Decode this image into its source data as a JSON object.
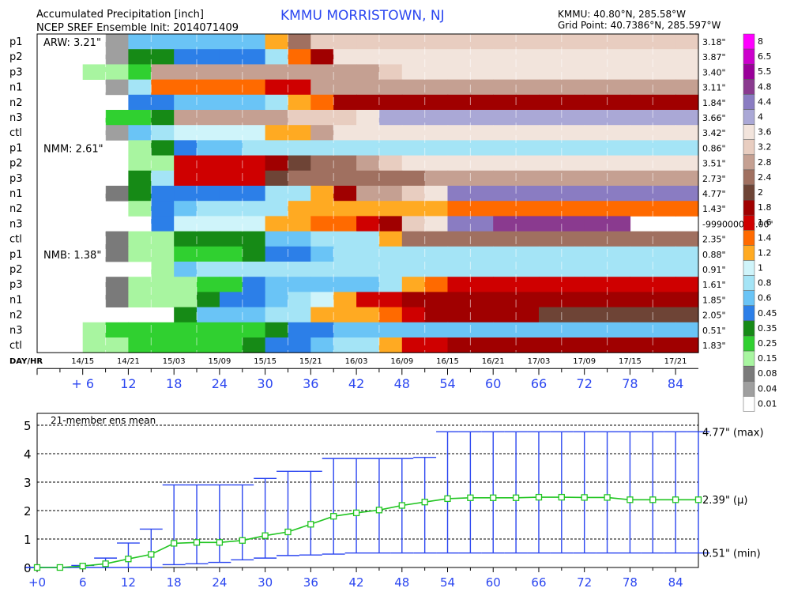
{
  "header": {
    "title_left_1": "Accumulated Precipitation [inch]",
    "title_left_2": "NCEP SREF Ensemble Init: 2014071409",
    "station_title": "KMMU  MORRISTOWN, NJ",
    "coords_1": "KMMU: 40.80°N, 285.58°W",
    "coords_2": "Grid Point: 40.7386°N, 285.597°W"
  },
  "colors": {
    "blue": "#2b46f0",
    "green": "#22c522",
    "text": "#000000"
  },
  "chart_data": [
    {
      "type": "heatmap",
      "title": "Accumulated Precipitation [inch]",
      "x_day_hr_label": "DAY/HR",
      "x_day_hr_ticks": [
        "14/15",
        "14/21",
        "15/03",
        "15/09",
        "15/15",
        "15/21",
        "16/03",
        "16/09",
        "16/15",
        "16/21",
        "17/03",
        "17/09",
        "17/15",
        "17/21"
      ],
      "x_fhr_ticks": [
        "+ 6",
        "12",
        "18",
        "24",
        "30",
        "36",
        "42",
        "48",
        "54",
        "60",
        "66",
        "72",
        "78",
        "84"
      ],
      "groups": [
        {
          "name": "ARW",
          "label": "ARW: 3.21\""
        },
        {
          "name": "NMM",
          "label": "NMM: 2.61\""
        },
        {
          "name": "NMB",
          "label": "NMB: 1.38\""
        }
      ],
      "members": [
        {
          "label": "p1",
          "total": "3.18\"",
          "group": "ARW",
          "cells": [
            null,
            null,
            null,
            "0.04",
            "0.6",
            "0.6",
            "0.6",
            "0.6",
            "0.6",
            "0.6",
            "1.2",
            "2.4",
            "3.2",
            "3.2",
            "3.2",
            "3.2",
            "3.2",
            "3.2",
            "3.2",
            "3.2",
            "3.2",
            "3.2",
            "3.2",
            "3.2",
            "3.2",
            "3.2",
            "3.2",
            "3.2",
            "3.2"
          ]
        },
        {
          "label": "p2",
          "total": "3.87\"",
          "group": "ARW",
          "cells": [
            null,
            null,
            null,
            "0.04",
            "0.35",
            "0.35",
            "0.45",
            "0.45",
            "0.45",
            "0.45",
            "0.8",
            "1.4",
            "1.8",
            "3.6",
            "3.6",
            "3.6",
            "3.6",
            "3.6",
            "3.6",
            "3.6",
            "3.6",
            "3.6",
            "3.6",
            "3.6",
            "3.6",
            "3.6",
            "3.6",
            "3.6",
            "3.6"
          ]
        },
        {
          "label": "p3",
          "total": "3.40\"",
          "group": "ARW",
          "cells": [
            null,
            null,
            "0.15",
            "0.15",
            "0.25",
            "2.8",
            "2.8",
            "2.8",
            "2.8",
            "2.8",
            "2.8",
            "2.8",
            "2.8",
            "2.8",
            "2.8",
            "3.2",
            "3.6",
            "3.6",
            "3.6",
            "3.6",
            "3.6",
            "3.6",
            "3.6",
            "3.6",
            "3.6",
            "3.6",
            "3.6",
            "3.6",
            "3.6"
          ]
        },
        {
          "label": "n1",
          "total": "3.11\"",
          "group": "ARW",
          "cells": [
            null,
            null,
            null,
            "0.04",
            "0.8",
            "1.4",
            "1.4",
            "1.4",
            "1.4",
            "1.4",
            "1.6",
            "1.6",
            "2.8",
            "2.8",
            "2.8",
            "2.8",
            "2.8",
            "2.8",
            "2.8",
            "2.8",
            "2.8",
            "2.8",
            "2.8",
            "2.8",
            "2.8",
            "2.8",
            "2.8",
            "2.8",
            "2.8"
          ]
        },
        {
          "label": "n2",
          "total": "1.84\"",
          "group": "ARW",
          "cells": [
            null,
            null,
            null,
            null,
            "0.45",
            "0.45",
            "0.6",
            "0.6",
            "0.6",
            "0.6",
            "0.8",
            "1.2",
            "1.4",
            "1.8",
            "1.8",
            "1.8",
            "1.8",
            "1.8",
            "1.8",
            "1.8",
            "1.8",
            "1.8",
            "1.8",
            "1.8",
            "1.8",
            "1.8",
            "1.8",
            "1.8",
            "1.8"
          ]
        },
        {
          "label": "n3",
          "total": "3.66\"",
          "group": "ARW",
          "cells": [
            null,
            null,
            null,
            "0.25",
            "0.25",
            "0.35",
            "2.8",
            "2.8",
            "2.8",
            "2.8",
            "2.8",
            "3.2",
            "3.2",
            "3.2",
            "3.6",
            "4",
            "4",
            "4",
            "4",
            "4",
            "4",
            "4",
            "4",
            "4",
            "4",
            "4",
            "4",
            "4",
            "4"
          ]
        },
        {
          "label": "ctl",
          "total": "3.42\"",
          "group": "ARW",
          "cells": [
            null,
            null,
            null,
            "0.04",
            "0.6",
            "0.8",
            "1",
            "1",
            "1",
            "1",
            "1.2",
            "1.2",
            "2.8",
            "3.6",
            "3.6",
            "3.6",
            "3.6",
            "3.6",
            "3.6",
            "3.6",
            "3.6",
            "3.6",
            "3.6",
            "3.6",
            "3.6",
            "3.6",
            "3.6",
            "3.6",
            "3.6"
          ]
        },
        {
          "label": "p1",
          "total": "0.86\"",
          "group": "NMM",
          "cells": [
            null,
            null,
            null,
            null,
            "0.15",
            "0.35",
            "0.45",
            "0.6",
            "0.6",
            "0.8",
            "0.8",
            "0.8",
            "0.8",
            "0.8",
            "0.8",
            "0.8",
            "0.8",
            "0.8",
            "0.8",
            "0.8",
            "0.8",
            "0.8",
            "0.8",
            "0.8",
            "0.8",
            "0.8",
            "0.8",
            "0.8",
            "0.8"
          ]
        },
        {
          "label": "p2",
          "total": "3.51\"",
          "group": "NMM",
          "cells": [
            null,
            null,
            null,
            null,
            "0.15",
            "0.15",
            "1.6",
            "1.6",
            "1.6",
            "1.6",
            "1.8",
            "2",
            "2.4",
            "2.4",
            "2.8",
            "3.2",
            "3.6",
            "3.6",
            "3.6",
            "3.6",
            "3.6",
            "3.6",
            "3.6",
            "3.6",
            "3.6",
            "3.6",
            "3.6",
            "3.6",
            "3.6"
          ]
        },
        {
          "label": "p3",
          "total": "2.73\"",
          "group": "NMM",
          "cells": [
            null,
            null,
            null,
            null,
            "0.35",
            "0.8",
            "1.6",
            "1.6",
            "1.6",
            "1.6",
            "2",
            "2.4",
            "2.4",
            "2.4",
            "2.4",
            "2.4",
            "2.4",
            "2.8",
            "2.8",
            "2.8",
            "2.8",
            "2.8",
            "2.8",
            "2.8",
            "2.8",
            "2.8",
            "2.8",
            "2.8",
            "2.8"
          ]
        },
        {
          "label": "n1",
          "total": "4.77\"",
          "group": "NMM",
          "cells": [
            null,
            null,
            null,
            "0.08",
            "0.35",
            "0.45",
            "0.45",
            "0.45",
            "0.45",
            "0.45",
            "0.8",
            "0.8",
            "1.2",
            "1.8",
            "2.8",
            "2.8",
            "3.2",
            "3.6",
            "4.4",
            "4.4",
            "4.4",
            "4.4",
            "4.4",
            "4.4",
            "4.4",
            "4.4",
            "4.4",
            "4.4",
            "4.4"
          ]
        },
        {
          "label": "n2",
          "total": "1.43\"",
          "group": "NMM",
          "cells": [
            null,
            null,
            null,
            null,
            "0.15",
            "0.45",
            "0.6",
            "0.8",
            "0.8",
            "0.8",
            "0.8",
            "1.2",
            "1.2",
            "1.2",
            "1.2",
            "1.2",
            "1.2",
            "1.2",
            "1.4",
            "1.4",
            "1.4",
            "1.4",
            "1.4",
            "1.4",
            "1.4",
            "1.4",
            "1.4",
            "1.4",
            "1.4"
          ]
        },
        {
          "label": "n3",
          "total": "-999000000.00\"",
          "group": "NMM",
          "cells": [
            null,
            null,
            null,
            null,
            null,
            "0.45",
            "1",
            "1",
            "1",
            "1",
            "1.2",
            "1.2",
            "1.4",
            "1.4",
            "1.6",
            "1.8",
            "3.2",
            "3.6",
            "4.4",
            "4.4",
            "4.8",
            "4.8",
            "4.8",
            "4.8",
            "4.8",
            "4.8",
            null,
            null,
            null
          ]
        },
        {
          "label": "ctl",
          "total": "2.35\"",
          "group": "NMM",
          "cells": [
            null,
            null,
            null,
            "0.08",
            "0.15",
            "0.15",
            "0.35",
            "0.35",
            "0.35",
            "0.35",
            "0.6",
            "0.6",
            "0.8",
            "0.8",
            "0.8",
            "1.2",
            "2.4",
            "2.4",
            "2.4",
            "2.4",
            "2.4",
            "2.4",
            "2.4",
            "2.4",
            "2.4",
            "2.4",
            "2.4",
            "2.4",
            "2.4"
          ]
        },
        {
          "label": "p1",
          "total": "0.88\"",
          "group": "NMB",
          "cells": [
            null,
            null,
            null,
            "0.08",
            "0.15",
            "0.15",
            "0.25",
            "0.25",
            "0.25",
            "0.35",
            "0.45",
            "0.45",
            "0.6",
            "0.8",
            "0.8",
            "0.8",
            "0.8",
            "0.8",
            "0.8",
            "0.8",
            "0.8",
            "0.8",
            "0.8",
            "0.8",
            "0.8",
            "0.8",
            "0.8",
            "0.8",
            "0.8"
          ]
        },
        {
          "label": "p2",
          "total": "0.91\"",
          "group": "NMB",
          "cells": [
            null,
            null,
            null,
            null,
            null,
            "0.15",
            "0.6",
            "0.8",
            "0.8",
            "0.8",
            "0.8",
            "0.8",
            "0.8",
            "0.8",
            "0.8",
            "0.8",
            "0.8",
            "0.8",
            "0.8",
            "0.8",
            "0.8",
            "0.8",
            "0.8",
            "0.8",
            "0.8",
            "0.8",
            "0.8",
            "0.8",
            "0.8"
          ]
        },
        {
          "label": "p3",
          "total": "1.61\"",
          "group": "NMB",
          "cells": [
            null,
            null,
            null,
            "0.08",
            "0.15",
            "0.15",
            "0.15",
            "0.25",
            "0.25",
            "0.45",
            "0.6",
            "0.6",
            "0.6",
            "0.6",
            "0.6",
            "0.8",
            "1.2",
            "1.4",
            "1.6",
            "1.6",
            "1.6",
            "1.6",
            "1.6",
            "1.6",
            "1.6",
            "1.6",
            "1.6",
            "1.6",
            "1.6"
          ]
        },
        {
          "label": "n1",
          "total": "1.85\"",
          "group": "NMB",
          "cells": [
            null,
            null,
            null,
            "0.08",
            "0.15",
            "0.15",
            "0.15",
            "0.35",
            "0.45",
            "0.45",
            "0.6",
            "0.8",
            "1",
            "1.2",
            "1.6",
            "1.6",
            "1.8",
            "1.8",
            "1.8",
            "1.8",
            "1.8",
            "1.8",
            "1.8",
            "1.8",
            "1.8",
            "1.8",
            "1.8",
            "1.8",
            "1.8"
          ]
        },
        {
          "label": "n2",
          "total": "2.05\"",
          "group": "NMB",
          "cells": [
            null,
            null,
            null,
            null,
            null,
            null,
            "0.35",
            "0.6",
            "0.6",
            "0.6",
            "0.8",
            "0.8",
            "1.2",
            "1.2",
            "1.2",
            "1.4",
            "1.6",
            "1.8",
            "1.8",
            "1.8",
            "1.8",
            "1.8",
            "2",
            "2",
            "2",
            "2",
            "2",
            "2",
            "2"
          ]
        },
        {
          "label": "n3",
          "total": "0.51\"",
          "group": "NMB",
          "cells": [
            null,
            null,
            "0.15",
            "0.25",
            "0.25",
            "0.25",
            "0.25",
            "0.25",
            "0.25",
            "0.25",
            "0.35",
            "0.45",
            "0.45",
            "0.6",
            "0.6",
            "0.6",
            "0.6",
            "0.6",
            "0.6",
            "0.6",
            "0.6",
            "0.6",
            "0.6",
            "0.6",
            "0.6",
            "0.6",
            "0.6",
            "0.6",
            "0.6"
          ]
        },
        {
          "label": "ctl",
          "total": "1.83\"",
          "group": "NMB",
          "cells": [
            null,
            null,
            "0.15",
            "0.15",
            "0.25",
            "0.25",
            "0.25",
            "0.25",
            "0.25",
            "0.35",
            "0.45",
            "0.45",
            "0.6",
            "0.8",
            "0.8",
            "1.2",
            "1.6",
            "1.6",
            "1.8",
            "1.8",
            "1.8",
            "1.8",
            "1.8",
            "1.8",
            "1.8",
            "1.8",
            "1.8",
            "1.8",
            "1.8"
          ]
        }
      ],
      "legend_levels": [
        "8",
        "6.5",
        "5.5",
        "4.8",
        "4.4",
        "4",
        "3.6",
        "3.2",
        "2.8",
        "2.4",
        "2",
        "1.8",
        "1.6",
        "1.4",
        "1.2",
        "1",
        "0.8",
        "0.6",
        "0.45",
        "0.35",
        "0.25",
        "0.15",
        "0.08",
        "0.04",
        "0.01"
      ],
      "legend_colors": [
        "#ff00ff",
        "#cc00cc",
        "#990099",
        "#8a3a8f",
        "#8a7cc2",
        "#aaa8d6",
        "#d2cfea",
        "#f2e4dc",
        "#e8cdc0",
        "#c5a092",
        "#a07060",
        "#6e4436",
        "#a00000",
        "#cf0000",
        "#ff2a00",
        "#ff6a00",
        "#ffaa22",
        "#ffe680",
        "#cff4fa",
        "#a4e4f6",
        "#6ac4f6",
        "#2c7fe8",
        "#1e4ed6",
        "#168a16",
        "#30d030",
        "#66ee66",
        "#a8f5a0",
        "#7a7a7a",
        "#9f9f9f",
        "#c4c4c4",
        "#ffffff"
      ]
    },
    {
      "type": "line",
      "title": "21-member ens mean",
      "x": [
        0,
        3,
        6,
        9,
        12,
        15,
        18,
        21,
        24,
        27,
        30,
        33,
        36,
        39,
        42,
        45,
        48,
        51,
        54,
        57,
        60,
        63,
        66,
        69,
        72,
        75,
        78,
        81,
        84,
        87
      ],
      "x_ticks": [
        "+0",
        "6",
        "12",
        "18",
        "24",
        "30",
        "36",
        "42",
        "48",
        "54",
        "60",
        "66",
        "72",
        "78",
        "84"
      ],
      "y_ticks": [
        "0",
        "1",
        "2",
        "3",
        "4",
        "5"
      ],
      "ylim": [
        0,
        5
      ],
      "series": [
        {
          "name": "ens mean",
          "values": [
            0,
            0,
            0.05,
            0.13,
            0.3,
            0.46,
            0.85,
            0.88,
            0.88,
            0.95,
            1.12,
            1.25,
            1.52,
            1.8,
            1.92,
            2.02,
            2.18,
            2.3,
            2.42,
            2.45,
            2.45,
            2.45,
            2.47,
            2.47,
            2.46,
            2.46,
            2.38,
            2.38,
            2.38,
            2.38
          ]
        },
        {
          "name": "max",
          "values": [
            0,
            0,
            0.07,
            0.33,
            0.86,
            1.35,
            2.9,
            2.9,
            2.9,
            2.9,
            3.13,
            3.38,
            3.38,
            3.83,
            3.83,
            3.83,
            3.83,
            3.87,
            4.77,
            4.77,
            4.77,
            4.77,
            4.77,
            4.77,
            4.77,
            4.77,
            4.77,
            4.77,
            4.77,
            4.77
          ]
        },
        {
          "name": "min",
          "values": [
            0,
            0,
            0,
            0,
            0,
            0,
            0.1,
            0.13,
            0.18,
            0.27,
            0.33,
            0.42,
            0.44,
            0.47,
            0.51,
            0.51,
            0.51,
            0.51,
            0.51,
            0.51,
            0.51,
            0.51,
            0.51,
            0.51,
            0.51,
            0.51,
            0.51,
            0.51,
            0.51,
            0.51
          ]
        }
      ],
      "annotations": {
        "max_label": "4.77\"  (max)",
        "mean_label": "2.39\"  (μ)",
        "min_label": "0.51\"  (min)"
      }
    }
  ]
}
